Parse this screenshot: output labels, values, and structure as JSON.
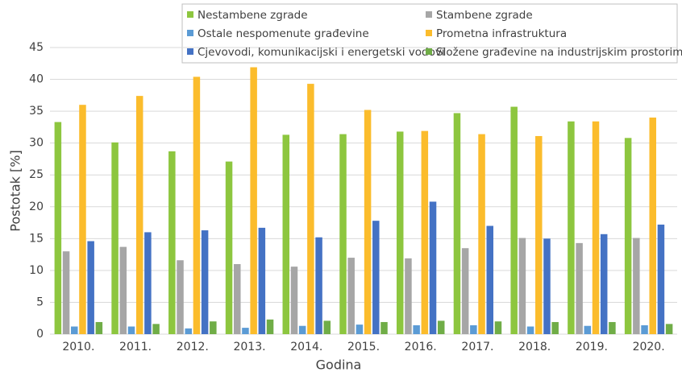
{
  "chart_data": {
    "type": "bar",
    "x_label": "Godina",
    "y_label": "Postotak [%]",
    "categories": [
      "2010.",
      "2011.",
      "2012.",
      "2013.",
      "2014.",
      "2015.",
      "2016.",
      "2017.",
      "2018.",
      "2019.",
      "2020."
    ],
    "series": [
      {
        "name": "Nestambene zgrade",
        "color": "#8dc63f",
        "values": [
          33.3,
          30.1,
          28.7,
          27.1,
          31.3,
          31.4,
          31.8,
          34.7,
          35.7,
          33.4,
          30.8
        ]
      },
      {
        "name": "Stambene zgrade",
        "color": "#a6a6a6",
        "values": [
          13.0,
          13.7,
          11.6,
          11.0,
          10.6,
          12.0,
          11.9,
          13.5,
          15.1,
          14.3,
          15.1
        ]
      },
      {
        "name": "Ostale nespomenute građevine",
        "color": "#5b9bd5",
        "values": [
          1.2,
          1.2,
          0.9,
          1.0,
          1.3,
          1.5,
          1.4,
          1.4,
          1.2,
          1.3,
          1.4
        ]
      },
      {
        "name": "Prometna infrastruktura",
        "color": "#fbbc2c",
        "values": [
          36.0,
          37.4,
          40.4,
          41.9,
          39.3,
          35.2,
          31.9,
          31.4,
          31.1,
          33.4,
          34.0
        ]
      },
      {
        "name": "Cjevovodi, komunikacijski i energetski vodovi",
        "color": "#4472c4",
        "values": [
          14.6,
          16.0,
          16.3,
          16.7,
          15.2,
          17.8,
          20.8,
          17.0,
          15.0,
          15.7,
          17.2
        ]
      },
      {
        "name": "Složene građevine na industrijskim prostorima",
        "color": "#70ad47",
        "values": [
          1.9,
          1.6,
          2.0,
          2.3,
          2.1,
          1.9,
          2.1,
          2.0,
          1.9,
          1.9,
          1.6
        ]
      }
    ],
    "ylim": [
      0,
      45
    ],
    "yticks": [
      0,
      5,
      10,
      15,
      20,
      25,
      30,
      35,
      40,
      45
    ],
    "grid": true,
    "legend": "top"
  }
}
